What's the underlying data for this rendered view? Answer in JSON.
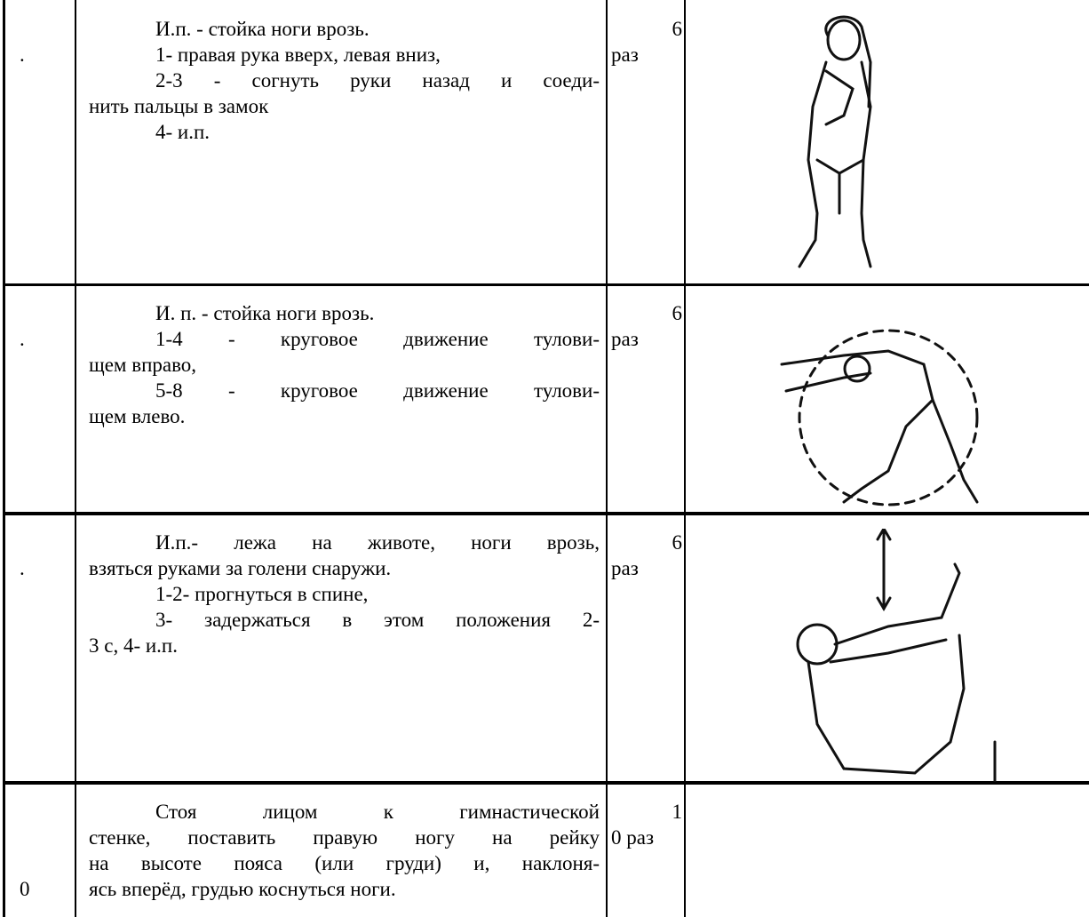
{
  "table": {
    "rows": [
      {
        "number": ".",
        "paragraphs": [
          [
            "И.п. - стойка ноги врозь."
          ],
          [
            "1- правая рука вверх, левая вниз,"
          ],
          [
            "2-3 - согнуть руки назад и соеди-",
            "нить пальцы в замок"
          ],
          [
            "4- и.п."
          ]
        ],
        "count": [
          "6",
          "раз"
        ]
      },
      {
        "number": ".",
        "paragraphs": [
          [
            "И. п. - стойка ноги врозь."
          ],
          [
            "1-4 - круговое движение тулови-",
            "щем вправо,"
          ],
          [
            "5-8 - круговое движение тулови-",
            "щем влево."
          ]
        ],
        "count": [
          "6",
          "раз"
        ]
      },
      {
        "number": ".",
        "paragraphs": [
          [
            "И.п.- лежа на животе, ноги врозь,",
            "взяться руками за голени снаружи."
          ],
          [
            "1-2- прогнуться в спине,"
          ],
          [
            "3- задержаться в этом положения 2-",
            "3 с, 4- и.п."
          ]
        ],
        "count": [
          "6",
          "раз"
        ]
      },
      {
        "number": "0",
        "paragraphs": [
          [
            "Стоя лицом к гимнастической",
            "стенке, поставить правую ногу на рейку",
            "на высоте пояса (или груди) и, наклоня-",
            "ясь вперёд, грудью коснуться ноги."
          ]
        ],
        "count": [
          "1",
          "0 раз"
        ]
      }
    ]
  }
}
